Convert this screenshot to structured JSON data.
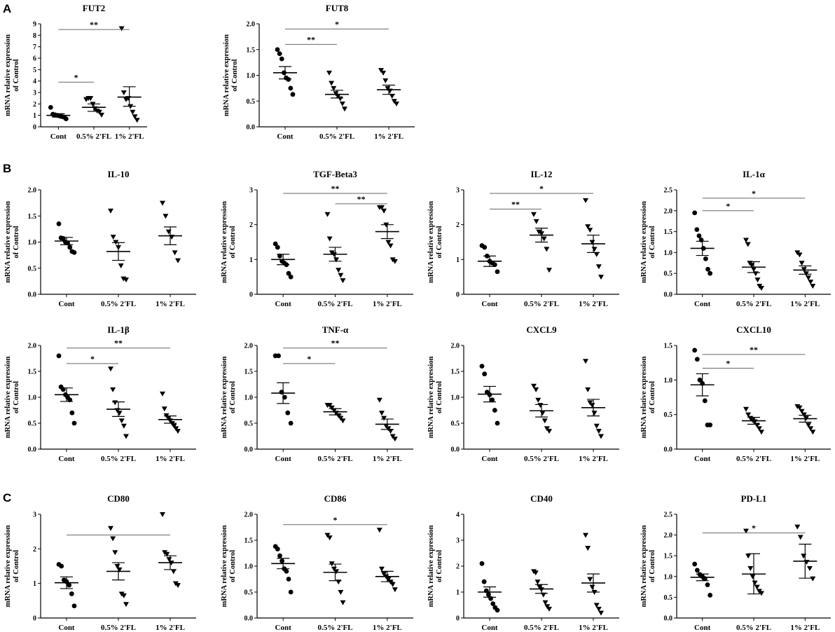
{
  "panel_labels": [
    "A",
    "B",
    "C"
  ],
  "chart_data": [
    {
      "id": "fut2",
      "type": "scatter",
      "title": "FUT2",
      "panel_label": "A",
      "ylabel": [
        "mRNA relative expression",
        "of Control"
      ],
      "categories": [
        "Cont",
        "0.5% 2'FL",
        "1% 2'FL"
      ],
      "ylim": [
        0,
        9
      ],
      "yticks": [
        "0",
        "1",
        "2",
        "3",
        "4",
        "5",
        "6",
        "7",
        "8",
        "9"
      ],
      "points": [
        [
          1.7,
          1.1,
          1.05,
          1.0,
          0.95,
          0.9,
          0.85,
          0.7
        ],
        [
          2.4,
          2.5,
          2.5,
          2.0,
          1.6,
          1.4,
          1.3,
          1.05
        ],
        [
          8.6,
          3.0,
          2.4,
          2.5,
          1.8,
          1.3,
          0.9,
          0.6
        ]
      ],
      "means": [
        1.0,
        1.7,
        2.6
      ],
      "err_low": [
        0.85,
        1.35,
        1.8
      ],
      "err_high": [
        1.15,
        2.0,
        3.5
      ],
      "brackets": [
        {
          "from": 0,
          "to": 1,
          "y": 3.9,
          "label": "*"
        },
        {
          "from": 0,
          "to": 2,
          "y": 8.5,
          "label": "**"
        }
      ]
    },
    {
      "id": "fut8",
      "type": "scatter",
      "title": "FUT8",
      "ylabel": [
        "mRNA relative expression",
        "of Control"
      ],
      "categories": [
        "Cont",
        "0.5% 2'FL",
        "1% 2'FL"
      ],
      "ylim": [
        0,
        2
      ],
      "yticks": [
        "0.0",
        "0.5",
        "1.0",
        "1.5",
        "2.0"
      ],
      "points": [
        [
          1.5,
          1.42,
          1.32,
          1.05,
          0.95,
          0.92,
          0.75,
          0.63
        ],
        [
          1.05,
          0.85,
          0.75,
          0.65,
          0.6,
          0.55,
          0.45,
          0.35
        ],
        [
          1.1,
          1.05,
          0.9,
          0.75,
          0.7,
          0.6,
          0.5,
          0.45
        ]
      ],
      "means": [
        1.05,
        0.63,
        0.72
      ],
      "err_low": [
        0.93,
        0.56,
        0.63
      ],
      "err_high": [
        1.17,
        0.71,
        0.81
      ],
      "brackets": [
        {
          "from": 0,
          "to": 1,
          "y": 1.6,
          "label": "**"
        },
        {
          "from": 0,
          "to": 2,
          "y": 1.9,
          "label": "*"
        }
      ]
    },
    {
      "id": "il10",
      "type": "scatter",
      "title": "IL-10",
      "panel_label": "B",
      "ylabel": [
        "mRNA relative expression",
        "of Control"
      ],
      "categories": [
        "Cont",
        "0.5% 2'FL",
        "1% 2'FL"
      ],
      "ylim": [
        0,
        2
      ],
      "yticks": [
        "0.0",
        "0.5",
        "1.0",
        "1.5",
        "2.0"
      ],
      "points": [
        [
          1.35,
          1.08,
          1.07,
          1.0,
          0.98,
          0.9,
          0.82,
          0.8
        ],
        [
          1.6,
          1.1,
          1.0,
          0.9,
          0.55,
          0.3,
          0.28
        ],
        [
          1.75,
          1.5,
          1.2,
          1.1,
          0.8,
          0.65
        ]
      ],
      "means": [
        1.02,
        0.82,
        1.12
      ],
      "err_low": [
        0.95,
        0.65,
        0.95
      ],
      "err_high": [
        1.09,
        0.99,
        1.29
      ],
      "brackets": []
    },
    {
      "id": "tgfb3",
      "type": "scatter",
      "title": "TGF-Beta3",
      "ylabel": [
        "mRNA relative expression",
        "of Control"
      ],
      "categories": [
        "Cont",
        "0.5% 2'FL",
        "1% 2'FL"
      ],
      "ylim": [
        0,
        3
      ],
      "yticks": [
        "0",
        "1",
        "2",
        "3"
      ],
      "points": [
        [
          1.45,
          1.35,
          1.1,
          0.95,
          0.9,
          0.85,
          0.6,
          0.5
        ],
        [
          2.3,
          1.6,
          1.2,
          1.15,
          1.0,
          0.7,
          0.55,
          0.4
        ],
        [
          2.5,
          2.5,
          2.4,
          2.0,
          1.5,
          1.4,
          1.0,
          0.95
        ]
      ],
      "means": [
        1.0,
        1.15,
        1.8
      ],
      "err_low": [
        0.85,
        0.95,
        1.6
      ],
      "err_high": [
        1.15,
        1.35,
        2.0
      ],
      "brackets": [
        {
          "from": 1,
          "to": 2,
          "y": 2.6,
          "label": "**"
        },
        {
          "from": 0,
          "to": 2,
          "y": 2.9,
          "label": "**"
        }
      ]
    },
    {
      "id": "il12",
      "type": "scatter",
      "title": "IL-12",
      "ylabel": [
        "mRNA relative expression",
        "of Control"
      ],
      "categories": [
        "Cont",
        "0.5% 2'FL",
        "1% 2'FL"
      ],
      "ylim": [
        0,
        3
      ],
      "yticks": [
        "0",
        "1",
        "2",
        "3"
      ],
      "points": [
        [
          1.4,
          1.35,
          1.1,
          0.95,
          0.9,
          0.85,
          0.65
        ],
        [
          2.3,
          2.1,
          1.8,
          1.75,
          1.6,
          1.3,
          0.7
        ],
        [
          2.7,
          1.95,
          1.85,
          1.5,
          1.3,
          1.15,
          0.8,
          0.5
        ]
      ],
      "means": [
        0.95,
        1.7,
        1.45
      ],
      "err_low": [
        0.8,
        1.5,
        1.2
      ],
      "err_high": [
        1.1,
        1.9,
        1.7
      ],
      "brackets": [
        {
          "from": 0,
          "to": 1,
          "y": 2.45,
          "label": "**"
        },
        {
          "from": 0,
          "to": 2,
          "y": 2.9,
          "label": "*"
        }
      ]
    },
    {
      "id": "il1a",
      "type": "scatter",
      "title": "IL-1α",
      "ylabel": [
        "mRNA relative expression",
        "of Control"
      ],
      "categories": [
        "Cont",
        "0.5% 2'FL",
        "1% 2'FL"
      ],
      "ylim": [
        0,
        2.5
      ],
      "yticks": [
        "0.0",
        "0.5",
        "1.0",
        "1.5",
        "2.0",
        "2.5"
      ],
      "points": [
        [
          1.95,
          1.55,
          1.4,
          1.3,
          1.1,
          0.85,
          0.6,
          0.5
        ],
        [
          1.3,
          1.2,
          0.75,
          0.7,
          0.6,
          0.5,
          0.35,
          0.2,
          0.15
        ],
        [
          1.0,
          0.95,
          0.75,
          0.6,
          0.5,
          0.4,
          0.3,
          0.2
        ]
      ],
      "means": [
        1.1,
        0.65,
        0.58
      ],
      "err_low": [
        0.93,
        0.52,
        0.48
      ],
      "err_high": [
        1.27,
        0.78,
        0.68
      ],
      "brackets": [
        {
          "from": 0,
          "to": 1,
          "y": 2.0,
          "label": "*"
        },
        {
          "from": 0,
          "to": 2,
          "y": 2.3,
          "label": "*"
        }
      ]
    },
    {
      "id": "il1b",
      "type": "scatter",
      "title": "IL-1β",
      "ylabel": [
        "mRNA relative expression",
        "of Control"
      ],
      "categories": [
        "Cont",
        "0.5% 2'FL",
        "1% 2'FL"
      ],
      "ylim": [
        0,
        2
      ],
      "yticks": [
        "0.0",
        "0.5",
        "1.0",
        "1.5",
        "2.0"
      ],
      "points": [
        [
          1.8,
          1.2,
          1.15,
          1.05,
          1.0,
          0.95,
          0.7,
          0.5
        ],
        [
          1.55,
          1.15,
          0.9,
          0.75,
          0.7,
          0.55,
          0.45,
          0.25
        ],
        [
          1.07,
          0.78,
          0.65,
          0.6,
          0.55,
          0.5,
          0.45,
          0.4,
          0.35
        ]
      ],
      "means": [
        1.05,
        0.77,
        0.57
      ],
      "err_low": [
        0.92,
        0.63,
        0.5
      ],
      "err_high": [
        1.18,
        0.91,
        0.64
      ],
      "brackets": [
        {
          "from": 0,
          "to": 1,
          "y": 1.65,
          "label": "*"
        },
        {
          "from": 0,
          "to": 2,
          "y": 1.95,
          "label": "**"
        }
      ]
    },
    {
      "id": "tnfa",
      "type": "scatter",
      "title": "TNF-α",
      "ylabel": [
        "mRNA relative expression",
        "of Control"
      ],
      "categories": [
        "Cont",
        "0.5% 2'FL",
        "1% 2'FL"
      ],
      "ylim": [
        0,
        2
      ],
      "yticks": [
        "0.0",
        "0.5",
        "1.0",
        "1.5",
        "2.0"
      ],
      "points": [
        [
          1.8,
          1.8,
          1.1,
          1.0,
          0.7,
          0.5
        ],
        [
          0.85,
          0.85,
          0.8,
          0.75,
          0.7,
          0.65,
          0.6,
          0.55
        ],
        [
          0.95,
          0.7,
          0.6,
          0.45,
          0.4,
          0.35,
          0.25,
          0.2
        ]
      ],
      "means": [
        1.08,
        0.72,
        0.48
      ],
      "err_low": [
        0.88,
        0.66,
        0.38
      ],
      "err_high": [
        1.28,
        0.78,
        0.58
      ],
      "brackets": [
        {
          "from": 0,
          "to": 1,
          "y": 1.65,
          "label": "*"
        },
        {
          "from": 0,
          "to": 2,
          "y": 1.95,
          "label": "**"
        }
      ]
    },
    {
      "id": "cxcl9",
      "type": "scatter",
      "title": "CXCL9",
      "ylabel": [
        "mRNA relative expression",
        "of Control"
      ],
      "categories": [
        "Cont",
        "0.5% 2'FL",
        "1% 2'FL"
      ],
      "ylim": [
        0,
        2
      ],
      "yticks": [
        "0.0",
        "0.5",
        "1.0",
        "1.5",
        "2.0"
      ],
      "points": [
        [
          1.6,
          1.45,
          1.1,
          1.05,
          0.95,
          0.75,
          0.5
        ],
        [
          1.22,
          1.15,
          0.95,
          0.85,
          0.7,
          0.55,
          0.4,
          0.35
        ],
        [
          1.7,
          1.15,
          0.9,
          0.85,
          0.7,
          0.45,
          0.35,
          0.25
        ]
      ],
      "means": [
        1.06,
        0.74,
        0.8
      ],
      "err_low": [
        0.91,
        0.62,
        0.64
      ],
      "err_high": [
        1.21,
        0.86,
        0.96
      ],
      "brackets": []
    },
    {
      "id": "cxcl10",
      "type": "scatter",
      "title": "CXCL10",
      "ylabel": [
        "mRNA relative expression",
        "of Control"
      ],
      "categories": [
        "Cont",
        "0.5% 2'FL",
        "1% 2'FL"
      ],
      "ylim": [
        0,
        1.5
      ],
      "yticks": [
        "0.0",
        "0.5",
        "1.0",
        "1.5"
      ],
      "points": [
        [
          1.43,
          1.3,
          1.0,
          0.95,
          0.7,
          0.35,
          0.35
        ],
        [
          0.58,
          0.5,
          0.45,
          0.42,
          0.4,
          0.35,
          0.3,
          0.25
        ],
        [
          0.62,
          0.6,
          0.55,
          0.5,
          0.45,
          0.35,
          0.3,
          0.25
        ]
      ],
      "means": [
        0.93,
        0.41,
        0.44
      ],
      "err_low": [
        0.77,
        0.36,
        0.39
      ],
      "err_high": [
        1.09,
        0.46,
        0.49
      ],
      "brackets": [
        {
          "from": 0,
          "to": 1,
          "y": 1.17,
          "label": "*"
        },
        {
          "from": 0,
          "to": 2,
          "y": 1.37,
          "label": "**"
        }
      ]
    },
    {
      "id": "cd80",
      "type": "scatter",
      "title": "CD80",
      "panel_label": "C",
      "ylabel": [
        "mRNA relative expression",
        "of Control"
      ],
      "categories": [
        "Cont",
        "0.5% 2'FL",
        "1% 2'FL"
      ],
      "ylim": [
        0,
        3
      ],
      "yticks": [
        "0",
        "1",
        "2",
        "3"
      ],
      "points": [
        [
          1.55,
          1.5,
          1.1,
          1.05,
          0.95,
          0.7,
          0.35
        ],
        [
          2.6,
          2.3,
          1.9,
          1.5,
          1.4,
          0.7,
          0.65,
          0.4
        ],
        [
          3.0,
          1.9,
          1.85,
          1.7,
          1.6,
          1.35,
          1.0,
          0.95
        ]
      ],
      "means": [
        1.02,
        1.35,
        1.6
      ],
      "err_low": [
        0.85,
        1.1,
        1.4
      ],
      "err_high": [
        1.19,
        1.6,
        1.8
      ],
      "brackets": [
        {
          "from": 0,
          "to": 2,
          "y": 2.4,
          "label": ""
        }
      ]
    },
    {
      "id": "cd86",
      "type": "scatter",
      "title": "CD86",
      "ylabel": [
        "mRNA relative expression",
        "of Control"
      ],
      "categories": [
        "Cont",
        "0.5% 2'FL",
        "1% 2'FL"
      ],
      "ylim": [
        0,
        2
      ],
      "yticks": [
        "0.0",
        "0.5",
        "1.0",
        "1.5",
        "2.0"
      ],
      "points": [
        [
          1.38,
          1.33,
          1.2,
          1.1,
          0.95,
          0.9,
          0.75,
          0.5
        ],
        [
          1.6,
          1.55,
          1.05,
          0.95,
          0.9,
          0.7,
          0.5,
          0.3
        ],
        [
          1.7,
          0.95,
          0.85,
          0.8,
          0.75,
          0.7,
          0.65,
          0.55
        ]
      ],
      "means": [
        1.05,
        0.88,
        0.8
      ],
      "err_low": [
        0.95,
        0.72,
        0.7
      ],
      "err_high": [
        1.15,
        1.04,
        0.9
      ],
      "brackets": [
        {
          "from": 0,
          "to": 2,
          "y": 1.8,
          "label": "*"
        }
      ]
    },
    {
      "id": "cd40",
      "type": "scatter",
      "title": "CD40",
      "ylabel": [
        "mRNA relative expression",
        "of Control"
      ],
      "categories": [
        "Cont",
        "0.5% 2'FL",
        "1% 2'FL"
      ],
      "ylim": [
        0,
        4
      ],
      "yticks": [
        "0",
        "1",
        "2",
        "3",
        "4"
      ],
      "points": [
        [
          2.1,
          1.4,
          1.05,
          0.9,
          0.75,
          0.55,
          0.4,
          0.3
        ],
        [
          1.8,
          1.75,
          1.4,
          1.2,
          1.1,
          0.9,
          0.6,
          0.45,
          0.35
        ],
        [
          3.2,
          2.7,
          1.5,
          1.2,
          1.0,
          0.5,
          0.35,
          0.2
        ]
      ],
      "means": [
        1.0,
        1.12,
        1.35
      ],
      "err_low": [
        0.8,
        0.95,
        1.0
      ],
      "err_high": [
        1.2,
        1.29,
        1.7
      ],
      "brackets": []
    },
    {
      "id": "pdl1",
      "type": "scatter",
      "title": "PD-L1",
      "ylabel": [
        "mRNA relative expression",
        "of Control"
      ],
      "categories": [
        "Cont",
        "0.5% 2'FL",
        "1% 2'FL"
      ],
      "ylim": [
        0,
        2.5
      ],
      "yticks": [
        "0.0",
        "0.5",
        "1.0",
        "1.5",
        "2.0",
        "2.5"
      ],
      "points": [
        [
          1.3,
          1.15,
          1.05,
          1.0,
          0.95,
          0.8,
          0.55
        ],
        [
          2.1,
          1.5,
          1.2,
          1.0,
          0.85,
          0.75,
          0.65,
          0.6
        ],
        [
          2.2,
          1.95,
          1.5,
          1.35,
          1.2,
          0.95
        ]
      ],
      "means": [
        0.98,
        1.06,
        1.37
      ],
      "err_low": [
        0.9,
        0.58,
        0.96
      ],
      "err_high": [
        1.06,
        1.55,
        1.78
      ],
      "brackets": [
        {
          "from": 0,
          "to": 2,
          "y": 2.05,
          "label": "*"
        }
      ]
    }
  ]
}
